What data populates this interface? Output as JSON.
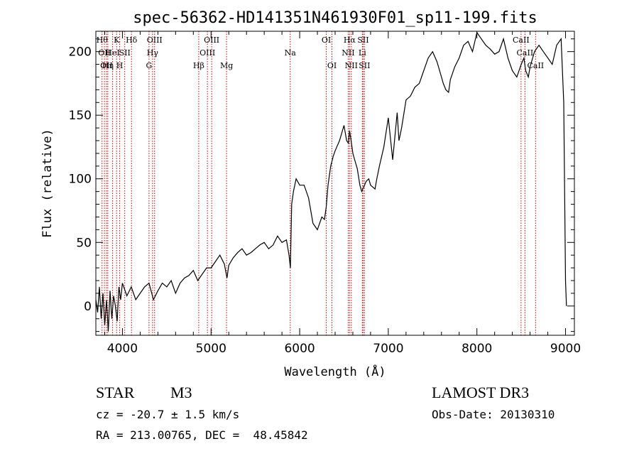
{
  "chart_data": {
    "type": "line",
    "title": "spec-56362-HD141351N461930F01_sp11-199.fits",
    "xlabel": "Wavelength (Å)",
    "ylabel": "Flux (relative)",
    "xlim": [
      3700,
      9100
    ],
    "ylim": [
      -23,
      216
    ],
    "xticks": [
      4000,
      5000,
      6000,
      7000,
      8000,
      9000
    ],
    "yticks": [
      0,
      50,
      100,
      150,
      200
    ],
    "series": [
      {
        "name": "flux",
        "x": [
          3700,
          3720,
          3740,
          3760,
          3780,
          3800,
          3820,
          3840,
          3860,
          3880,
          3900,
          3920,
          3940,
          3960,
          3980,
          4000,
          4050,
          4100,
          4150,
          4200,
          4250,
          4300,
          4350,
          4400,
          4450,
          4500,
          4550,
          4600,
          4650,
          4700,
          4750,
          4800,
          4850,
          4900,
          4950,
          5000,
          5050,
          5100,
          5150,
          5180,
          5200,
          5250,
          5300,
          5350,
          5400,
          5450,
          5500,
          5550,
          5600,
          5650,
          5700,
          5750,
          5800,
          5850,
          5880,
          5895,
          5910,
          5930,
          5960,
          6000,
          6050,
          6100,
          6150,
          6200,
          6250,
          6280,
          6300,
          6320,
          6350,
          6380,
          6400,
          6450,
          6500,
          6530,
          6550,
          6563,
          6580,
          6600,
          6620,
          6650,
          6680,
          6700,
          6720,
          6750,
          6780,
          6800,
          6850,
          6870,
          6900,
          6950,
          7000,
          7050,
          7100,
          7120,
          7150,
          7200,
          7250,
          7300,
          7350,
          7400,
          7450,
          7500,
          7550,
          7600,
          7620,
          7650,
          7680,
          7700,
          7750,
          7800,
          7850,
          7900,
          7950,
          8000,
          8050,
          8100,
          8150,
          8200,
          8250,
          8300,
          8350,
          8400,
          8450,
          8500,
          8530,
          8550,
          8580,
          8600,
          8650,
          8700,
          8750,
          8800,
          8850,
          8900,
          8950,
          8980,
          9000,
          9010
        ],
        "values": [
          5,
          -5,
          15,
          -10,
          10,
          -15,
          5,
          -20,
          12,
          -10,
          8,
          0,
          -12,
          15,
          5,
          18,
          8,
          15,
          5,
          10,
          15,
          18,
          5,
          12,
          18,
          15,
          20,
          10,
          18,
          22,
          24,
          28,
          20,
          25,
          30,
          30,
          35,
          40,
          33,
          22,
          32,
          38,
          42,
          45,
          40,
          42,
          45,
          48,
          50,
          45,
          48,
          55,
          50,
          52,
          40,
          30,
          80,
          90,
          100,
          95,
          95,
          85,
          65,
          60,
          70,
          68,
          78,
          95,
          110,
          118,
          122,
          130,
          142,
          130,
          128,
          138,
          130,
          120,
          115,
          108,
          95,
          90,
          93,
          98,
          100,
          95,
          92,
          100,
          110,
          125,
          148,
          115,
          152,
          130,
          140,
          162,
          165,
          172,
          175,
          185,
          195,
          200,
          192,
          180,
          175,
          170,
          168,
          178,
          188,
          195,
          205,
          208,
          200,
          215,
          210,
          205,
          202,
          198,
          200,
          210,
          195,
          185,
          180,
          190,
          195,
          185,
          180,
          188,
          200,
          205,
          200,
          195,
          190,
          205,
          210,
          160,
          20,
          0
        ]
      }
    ],
    "lines": [
      {
        "wl": 3770,
        "label": "Hθ",
        "row": 0
      },
      {
        "wl": 3797,
        "label": "OII",
        "row": 1
      },
      {
        "wl": 3820,
        "label": "OII",
        "row": 2
      },
      {
        "wl": 3835,
        "label": "Hη",
        "row": 2
      },
      {
        "wl": 3889,
        "label": "HeI",
        "row": 1
      },
      {
        "wl": 3934,
        "label": "K",
        "row": 0
      },
      {
        "wl": 3969,
        "label": "H",
        "row": 2
      },
      {
        "wl": 4026,
        "label": "SII",
        "row": 1
      },
      {
        "wl": 4102,
        "label": "Hδ",
        "row": 0
      },
      {
        "wl": 4300,
        "label": "G",
        "row": 2
      },
      {
        "wl": 4340,
        "label": "Hγ",
        "row": 1
      },
      {
        "wl": 4363,
        "label": "OIII",
        "row": 0
      },
      {
        "wl": 4861,
        "label": "Hβ",
        "row": 2
      },
      {
        "wl": 4959,
        "label": "OIII",
        "row": 1
      },
      {
        "wl": 5007,
        "label": "OIII",
        "row": 0
      },
      {
        "wl": 5175,
        "label": "Mg",
        "row": 2
      },
      {
        "wl": 5893,
        "label": "Na",
        "row": 1
      },
      {
        "wl": 6300,
        "label": "OI",
        "row": 0
      },
      {
        "wl": 6364,
        "label": "OI",
        "row": 2
      },
      {
        "wl": 6548,
        "label": "NII",
        "row": 1
      },
      {
        "wl": 6563,
        "label": "Hα",
        "row": 0
      },
      {
        "wl": 6583,
        "label": "NII",
        "row": 2
      },
      {
        "wl": 6707,
        "label": "Li",
        "row": 1
      },
      {
        "wl": 6716,
        "label": "SII",
        "row": 0
      },
      {
        "wl": 6731,
        "label": "SII",
        "row": 2
      },
      {
        "wl": 8498,
        "label": "CaII",
        "row": 0
      },
      {
        "wl": 8542,
        "label": "CaII",
        "row": 1
      },
      {
        "wl": 8662,
        "label": "CaII",
        "row": 2
      }
    ],
    "line_color": "#c80000"
  },
  "info": {
    "object_type": "STAR",
    "subclass": "M3",
    "survey": "LAMOST DR3",
    "cz_text": "cz = -20.7 ± 1.5 km/s",
    "obs_date_text": "Obs-Date: 20130310",
    "coords_text": "RA = 213.00765, DEC =  48.45842"
  }
}
